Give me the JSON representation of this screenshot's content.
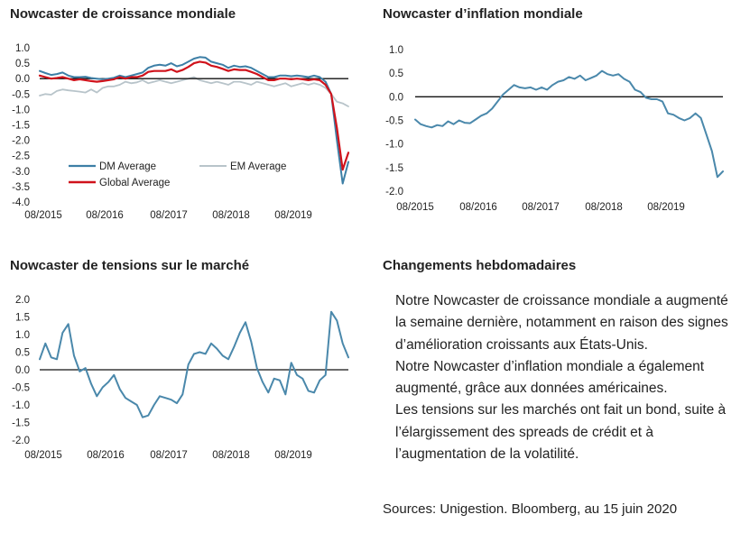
{
  "chart_data": [
    {
      "type": "line",
      "title": "Nowcaster de croissance mondiale",
      "ylim": [
        -4.0,
        1.0
      ],
      "yticks": [
        "1.0",
        "0.5",
        "0.0",
        "-0.5",
        "-1.0",
        "-1.5",
        "-2.0",
        "-2.5",
        "-3.0",
        "-3.5",
        "-4.0"
      ],
      "xticks": [
        "08/2015",
        "08/2016",
        "08/2017",
        "08/2018",
        "08/2019"
      ],
      "legend": "inside-bottom",
      "series": [
        {
          "name": "DM Average",
          "color": "#3d7fa6",
          "width": 2,
          "values": [
            0.25,
            0.18,
            0.12,
            0.15,
            0.2,
            0.1,
            0.05,
            0.05,
            0.06,
            0.02,
            0.0,
            -0.02,
            0.0,
            0.03,
            0.1,
            0.05,
            0.1,
            0.15,
            0.2,
            0.35,
            0.42,
            0.45,
            0.42,
            0.5,
            0.4,
            0.45,
            0.55,
            0.65,
            0.7,
            0.68,
            0.55,
            0.5,
            0.45,
            0.35,
            0.42,
            0.38,
            0.4,
            0.35,
            0.25,
            0.15,
            0.05,
            0.05,
            0.1,
            0.1,
            0.08,
            0.1,
            0.08,
            0.05,
            0.1,
            0.05,
            -0.1,
            -0.5,
            -2.0,
            -3.4,
            -2.7
          ]
        },
        {
          "name": "EM Average",
          "color": "#b8c4ca",
          "width": 1.8,
          "values": [
            -0.55,
            -0.5,
            -0.52,
            -0.4,
            -0.35,
            -0.38,
            -0.4,
            -0.42,
            -0.45,
            -0.35,
            -0.45,
            -0.3,
            -0.25,
            -0.25,
            -0.2,
            -0.1,
            -0.15,
            -0.12,
            -0.05,
            -0.15,
            -0.1,
            -0.05,
            -0.1,
            -0.15,
            -0.1,
            -0.05,
            0.0,
            0.05,
            -0.05,
            -0.1,
            -0.15,
            -0.1,
            -0.15,
            -0.2,
            -0.1,
            -0.1,
            -0.15,
            -0.2,
            -0.1,
            -0.15,
            -0.2,
            -0.25,
            -0.2,
            -0.15,
            -0.25,
            -0.2,
            -0.15,
            -0.2,
            -0.15,
            -0.2,
            -0.3,
            -0.5,
            -0.75,
            -0.8,
            -0.9
          ]
        },
        {
          "name": "Global Average",
          "color": "#d0121b",
          "width": 2.2,
          "values": [
            0.1,
            0.05,
            0.0,
            0.02,
            0.05,
            0.0,
            -0.05,
            -0.02,
            -0.05,
            -0.08,
            -0.1,
            -0.08,
            -0.05,
            -0.02,
            0.05,
            0.0,
            0.05,
            0.05,
            0.1,
            0.22,
            0.25,
            0.25,
            0.25,
            0.3,
            0.22,
            0.28,
            0.38,
            0.5,
            0.55,
            0.52,
            0.42,
            0.38,
            0.32,
            0.25,
            0.3,
            0.28,
            0.28,
            0.22,
            0.15,
            0.05,
            -0.05,
            -0.05,
            0.0,
            0.0,
            -0.02,
            0.0,
            -0.02,
            -0.05,
            -0.02,
            -0.05,
            -0.2,
            -0.5,
            -1.6,
            -2.95,
            -2.4
          ]
        }
      ]
    },
    {
      "type": "line",
      "title": "Nowcaster d’inflation mondiale",
      "ylim": [
        -2.0,
        1.0
      ],
      "yticks": [
        "1.0",
        "0.5",
        "0.0",
        "-0.5",
        "-1.0",
        "-1.5",
        "-2.0"
      ],
      "xticks": [
        "08/2015",
        "08/2016",
        "08/2017",
        "08/2018",
        "08/2019"
      ],
      "series": [
        {
          "name": "",
          "color": "#4a88ab",
          "width": 2,
          "values": [
            -0.48,
            -0.58,
            -0.62,
            -0.65,
            -0.6,
            -0.62,
            -0.52,
            -0.58,
            -0.5,
            -0.55,
            -0.56,
            -0.48,
            -0.4,
            -0.35,
            -0.25,
            -0.1,
            0.05,
            0.15,
            0.25,
            0.2,
            0.18,
            0.2,
            0.15,
            0.2,
            0.15,
            0.25,
            0.32,
            0.35,
            0.42,
            0.38,
            0.45,
            0.35,
            0.4,
            0.45,
            0.55,
            0.48,
            0.45,
            0.48,
            0.38,
            0.32,
            0.15,
            0.1,
            -0.02,
            -0.05,
            -0.05,
            -0.1,
            -0.35,
            -0.38,
            -0.45,
            -0.5,
            -0.45,
            -0.35,
            -0.45,
            -0.8,
            -1.15,
            -1.7,
            -1.58
          ]
        }
      ]
    },
    {
      "type": "line",
      "title": "Nowcaster de tensions sur le marché",
      "ylim": [
        -2.0,
        2.0
      ],
      "yticks": [
        "2.0",
        "1.5",
        "1.0",
        "0.5",
        "0.0",
        "-0.5",
        "-1.0",
        "-1.5",
        "-2.0"
      ],
      "xticks": [
        "08/2015",
        "08/2016",
        "08/2017",
        "08/2018",
        "08/2019"
      ],
      "series": [
        {
          "name": "",
          "color": "#4a88ab",
          "width": 2,
          "values": [
            0.3,
            0.75,
            0.35,
            0.3,
            1.05,
            1.3,
            0.4,
            -0.05,
            0.05,
            -0.4,
            -0.75,
            -0.5,
            -0.35,
            -0.15,
            -0.55,
            -0.8,
            -0.9,
            -1.0,
            -1.35,
            -1.3,
            -1.0,
            -0.75,
            -0.8,
            -0.85,
            -0.95,
            -0.7,
            0.15,
            0.45,
            0.5,
            0.45,
            0.75,
            0.6,
            0.4,
            0.3,
            0.65,
            1.05,
            1.35,
            0.8,
            0.05,
            -0.35,
            -0.65,
            -0.25,
            -0.3,
            -0.7,
            0.2,
            -0.15,
            -0.25,
            -0.6,
            -0.65,
            -0.3,
            -0.15,
            1.65,
            1.4,
            0.75,
            0.35
          ]
        }
      ]
    }
  ],
  "commentary": {
    "heading": "Changements hebdomadaires",
    "paragraphs": [
      "Notre Nowcaster de croissance mondiale a augmenté la semaine dernière, notamment en raison des signes d’amélioration croissants aux États-Unis.",
      "Notre Nowcaster d’inflation mondiale a également augmenté, grâce aux données américaines.",
      "Les tensions sur les marchés ont fait un bond, suite à l’élargissement des spreads de crédit et à l’augmentation de la volatilité."
    ]
  },
  "sources": "Sources: Unigestion. Bloomberg, au 15 juin 2020"
}
